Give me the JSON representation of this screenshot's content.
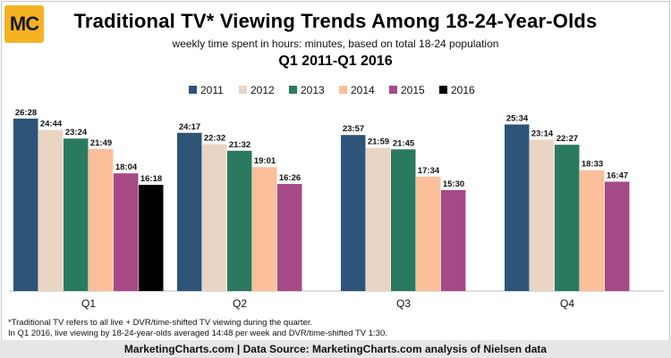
{
  "logo": {
    "text": "MC",
    "color": "#f4b223"
  },
  "header": {
    "title": "Traditional TV* Viewing Trends Among 18-24-Year-Olds",
    "subtitle": "weekly time spent in hours: minutes, based on total 18-24 population",
    "period": "Q1 2011-Q1 2016"
  },
  "chart_data": {
    "type": "bar",
    "categories": [
      "Q1",
      "Q2",
      "Q3",
      "Q4"
    ],
    "series": [
      {
        "name": "2011",
        "color": "#2e5479",
        "values": [
          26.4667,
          24.2833,
          23.95,
          25.5667
        ],
        "labels": [
          "26:28",
          "24:17",
          "23:57",
          "25:34"
        ]
      },
      {
        "name": "2012",
        "color": "#ead5c5",
        "values": [
          24.7333,
          22.5333,
          21.9833,
          23.2333
        ],
        "labels": [
          "24:44",
          "22:32",
          "21:59",
          "23:14"
        ]
      },
      {
        "name": "2013",
        "color": "#2a7a5f",
        "values": [
          23.4,
          21.5333,
          21.75,
          22.45
        ],
        "labels": [
          "23:24",
          "21:32",
          "21:45",
          "22:27"
        ]
      },
      {
        "name": "2014",
        "color": "#fbbf9a",
        "values": [
          21.8167,
          19.0167,
          17.5667,
          18.55
        ],
        "labels": [
          "21:49",
          "19:01",
          "17:34",
          "18:33"
        ]
      },
      {
        "name": "2015",
        "color": "#a54a87",
        "values": [
          18.0667,
          16.4333,
          15.5,
          16.7833
        ],
        "labels": [
          "18:04",
          "16:26",
          "15:30",
          "16:47"
        ]
      },
      {
        "name": "2016",
        "color": "#000000",
        "values": [
          16.3,
          null,
          null,
          null
        ],
        "labels": [
          "16:18",
          "",
          "",
          ""
        ]
      }
    ],
    "ylim": [
      0,
      28.5
    ],
    "grid": false,
    "legend_position": "top-center"
  },
  "footnote": {
    "line1": "*Traditional TV refers to all live + DVR/time-shifted TV viewing during the quarter.",
    "line2": "In Q1 2016, live viewing by 18-24-year-olds averaged 14:48 per week and DVR/time-shifted TV 1:30."
  },
  "footer": {
    "text": "MarketingCharts.com | Data Source: MarketingCharts.com analysis of Nielsen data"
  }
}
